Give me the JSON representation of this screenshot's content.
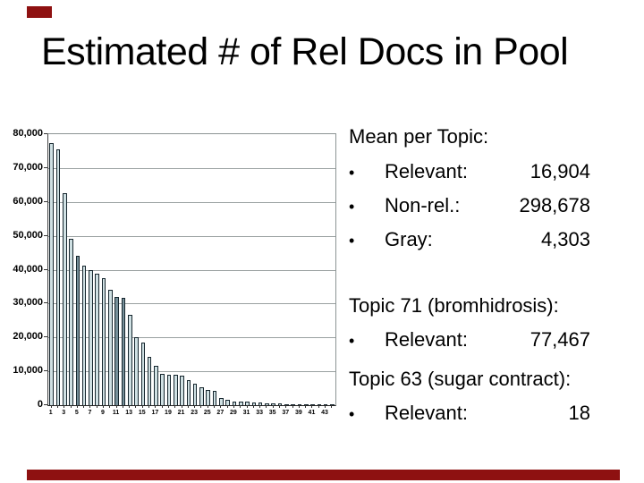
{
  "title": "Estimated # of Rel Docs in Pool",
  "accent_color": "#8e1111",
  "notes": {
    "mean_heading": "Mean per Topic:",
    "bullet_char": "•",
    "mean_items": [
      {
        "label": "Relevant:",
        "value": "16,904"
      },
      {
        "label": "Non-rel.:",
        "value": "298,678"
      },
      {
        "label": "Gray:",
        "value": "4,303"
      }
    ],
    "topic71_heading": "Topic 71 (bromhidrosis):",
    "topic71_items": [
      {
        "label": "Relevant:",
        "value": "77,467"
      }
    ],
    "topic63_heading": "Topic 63 (sugar contract):",
    "topic63_items": [
      {
        "label": "Relevant:",
        "value": "18"
      }
    ]
  },
  "chart_data": {
    "type": "bar",
    "title": "",
    "xlabel": "",
    "ylabel": "",
    "ylim": [
      0,
      80000
    ],
    "ytick_step": 10000,
    "grid": true,
    "legend": "none",
    "categories": [
      1,
      2,
      3,
      4,
      5,
      6,
      7,
      8,
      9,
      10,
      11,
      12,
      13,
      14,
      15,
      16,
      17,
      18,
      19,
      20,
      21,
      22,
      23,
      24,
      25,
      26,
      27,
      28,
      29,
      30,
      31,
      32,
      33,
      34,
      35,
      36,
      37,
      38,
      39,
      40,
      41,
      42,
      43,
      44
    ],
    "values": [
      77467,
      75500,
      62500,
      49000,
      44100,
      41200,
      40000,
      38900,
      37600,
      34000,
      32000,
      31700,
      26800,
      20100,
      18400,
      14300,
      11600,
      9200,
      9000,
      8900,
      8700,
      7300,
      6400,
      5400,
      4600,
      4300,
      2100,
      1500,
      1100,
      1000,
      1000,
      800,
      700,
      600,
      500,
      450,
      400,
      350,
      300,
      300,
      250,
      200,
      180,
      150
    ],
    "dark_bar_indices": [
      5,
      11,
      12
    ],
    "ytick_labels": [
      "80,000",
      "70,000",
      "60,000",
      "50,000",
      "40,000",
      "30,000",
      "20,000",
      "10,000",
      "0"
    ],
    "xtick_labels": [
      "1",
      "3",
      "5",
      "7",
      "9",
      "11",
      "13",
      "15",
      "17",
      "19",
      "21",
      "23",
      "25",
      "27",
      "29",
      "31",
      "33",
      "35",
      "37",
      "39",
      "41",
      "43"
    ],
    "bar_fill": "#cfe0e3",
    "bar_fill_dark": "#76909a",
    "bar_border": "#16262e"
  }
}
